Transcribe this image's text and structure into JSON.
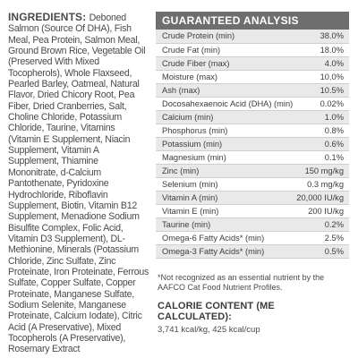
{
  "ingredients": {
    "heading": "INGREDIENTS:",
    "text": "Deboned Salmon (Source Of DHA), Fish Meal, Pea Protein, Salmon Meal, Ground Brown Rice, Vegetable Oil (Preserved With Mixed Tocopherols), Whole Flaxseed, Pearled Barley, Oatmeal, Natural Flavor, Dried Chicory Root, Pea Fiber, Dried Cranberries, Salt, Choline Chloride, Potassium Chloride, Taurine, Vitamins (Vitamin E Supplement, Niacin Supplement, Vitamin A Supplement, Thiamine Mononitrate, d-Calcium Pantothenate, Pyridoxine Hydrochloride, Riboflavin Supplement, Biotin, Vitamin B12 Supplement, Menadione Sodium Bisulfite Complex, Folic Acid, Vitamin D3 Supplement), DL-Methionine, Minerals (Potassium Chloride, Zinc Sulfate, Zinc Proteinate, Iron Proteinate, Ferrous Sulfate, Copper Sulfate, Copper Proteinate, Manganese Sulfate, Sodium Selenite, Manganese Proteinate, Calcium Iodate), Citric Acid (A Preservative), Mixed Tocopherols (A Preservative), Rosemary Extract"
  },
  "analysis": {
    "title": "GUARANTEED ANALYSIS",
    "colors": {
      "header": "#6e6e6e",
      "shade": "#e9e9e9"
    },
    "rows": [
      {
        "name": "Crude Protein (min)",
        "value": "38.0%"
      },
      {
        "name": "Crude Fat (min)",
        "value": "18.0%"
      },
      {
        "name": "Crude Fiber (max)",
        "value": "4.0%"
      },
      {
        "name": "Moisture (max)",
        "value": "10.0%"
      },
      {
        "name": "Ash (max)",
        "value": "10.5%"
      },
      {
        "name": "Docosahexaenoic Acid (DHA) (min)",
        "value": "0.02%"
      },
      {
        "name": "Calcium (min)",
        "value": "1.0%"
      },
      {
        "name": "Phosphorus (min)",
        "value": "0.8%"
      },
      {
        "name": "Potassium (min)",
        "value": "0.6%"
      },
      {
        "name": "Magnesium (min)",
        "value": "0.1%"
      },
      {
        "name": "Zinc (min)",
        "value": "150 mg/kg"
      },
      {
        "name": "Selenium (min)",
        "value": "0.3 mg/kg"
      },
      {
        "name": "Vitamin A (min)",
        "value": "20,000 IU/kg"
      },
      {
        "name": "Vitamin E (min)",
        "value": "200 IU/kg"
      },
      {
        "name": "Taurine (min)",
        "value": "0.2%"
      },
      {
        "name": "Omega-6 Fatty Acids* (min)",
        "value": "2.5%"
      },
      {
        "name": "Omega-3 Fatty Acids* (min)",
        "value": "0.5%"
      }
    ]
  },
  "footnote": "*Not recognized as an essential nutrient by the AAFCO Cat Food Nutrient Profiles.",
  "calorie": {
    "heading": "CALORIE CONTENT (ME CALCULATED):",
    "value": "3,741 kcal/kg, 425 kcal/cup"
  }
}
